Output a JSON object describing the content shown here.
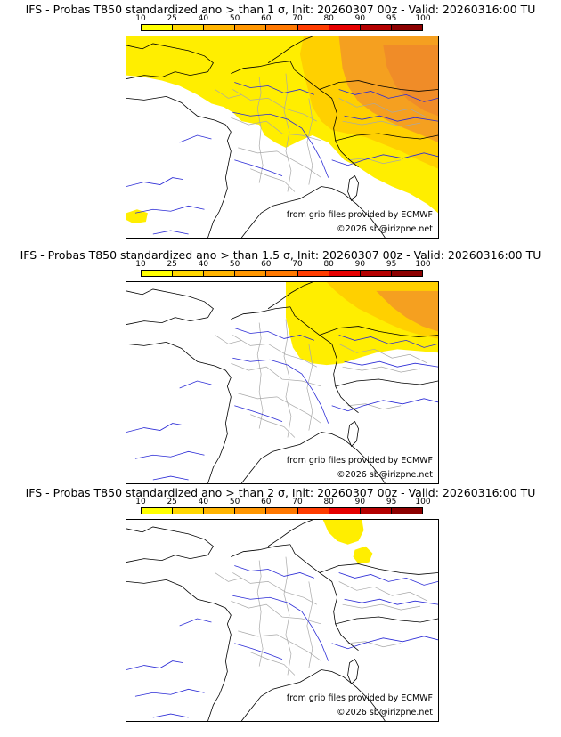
{
  "panels": [
    {
      "title": "IFS - Probas T850  standardized ano > than 1 σ, Init: 20260307 00z - Valid: 20260316:00 TU",
      "source_note": "from grib files provided by ECMWF",
      "copyright": "©2026 sb@irizpne.net"
    },
    {
      "title": "IFS - Probas T850  standardized ano > than 1.5 σ, Init: 20260307 00z - Valid: 20260316:00 TU",
      "source_note": "from grib files provided by ECMWF",
      "copyright": "©2026 sb@irizpne.net"
    },
    {
      "title": "IFS - Probas T850  standardized ano > than 2 σ, Init: 20260307 00z - Valid: 20260316:00 TU",
      "source_note": "from grib files provided by ECMWF",
      "copyright": "©2026 sb@irizpne.net"
    }
  ],
  "colorbar": {
    "ticks": [
      "10",
      "25",
      "40",
      "50",
      "60",
      "70",
      "80",
      "90",
      "95",
      "100"
    ],
    "colors": [
      "#ffff00",
      "#ffd700",
      "#ffb400",
      "#ff9600",
      "#ff7800",
      "#ff3c00",
      "#e60000",
      "#b40000",
      "#8c0000"
    ]
  },
  "map_colors": {
    "land_border": "#000000",
    "regions": "#a8a8a8",
    "rivers": "#2b2bd6",
    "low": "#ffee00",
    "mid": "#ffd000",
    "high": "#f5a020",
    "higher": "#f08c28"
  }
}
